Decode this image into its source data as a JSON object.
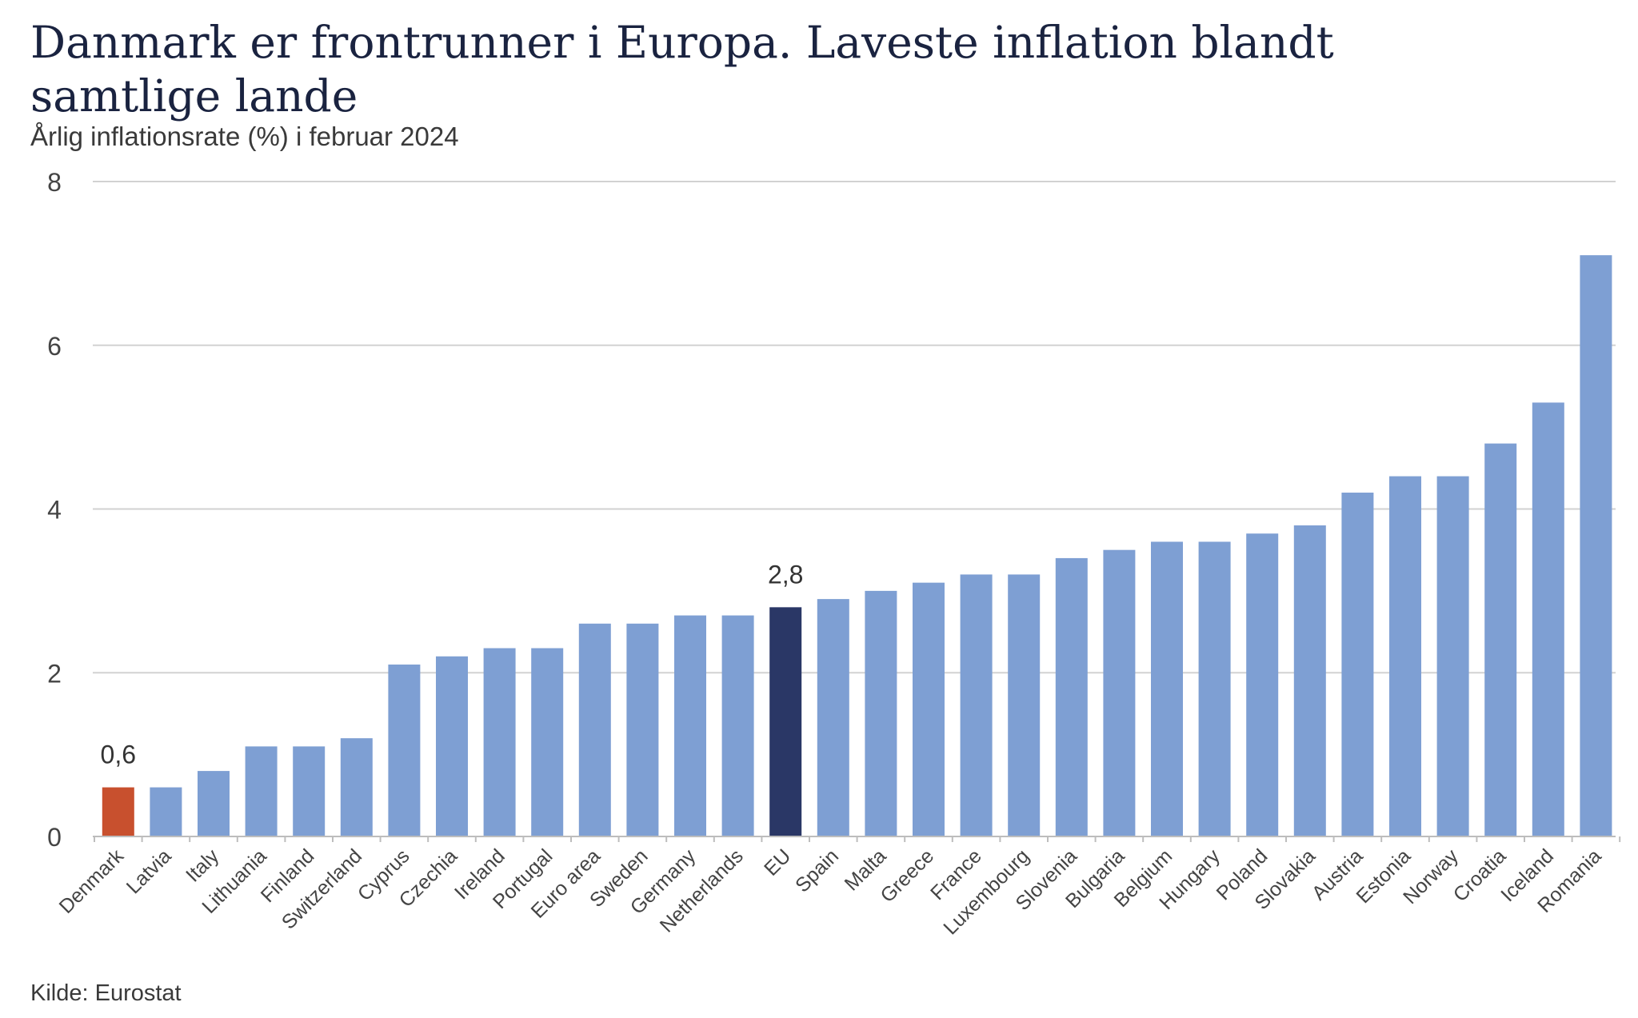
{
  "title": "Danmark er frontrunner i Europa. Laveste inflation blandt samtlige lande",
  "subtitle": "Årlig inflationsrate (%) i februar 2024",
  "source": "Kilde: Eurostat",
  "colors": {
    "default_bar": "#7e9fd3",
    "highlight_denmark": "#c8502e",
    "highlight_eu": "#2a3766",
    "grid": "#d2d2d2",
    "axis_text": "#444444",
    "title": "#1a2340"
  },
  "chart_data": {
    "type": "bar",
    "title": "Danmark er frontrunner i Europa. Laveste inflation blandt samtlige lande",
    "subtitle": "Årlig inflationsrate (%) i februar 2024",
    "xlabel": "",
    "ylabel": "",
    "ylim": [
      0,
      8
    ],
    "yticks": [
      "0",
      "2",
      "4",
      "6",
      "8"
    ],
    "grid": true,
    "categories": [
      "Denmark",
      "Latvia",
      "Italy",
      "Lithuania",
      "Finland",
      "Switzerland",
      "Cyprus",
      "Czechia",
      "Ireland",
      "Portugal",
      "Euro area",
      "Sweden",
      "Germany",
      "Netherlands",
      "EU",
      "Spain",
      "Malta",
      "Greece",
      "France",
      "Luxembourg",
      "Slovenia",
      "Bulgaria",
      "Belgium",
      "Hungary",
      "Poland",
      "Slovakia",
      "Austria",
      "Estonia",
      "Norway",
      "Croatia",
      "Iceland",
      "Romania"
    ],
    "values": [
      0.6,
      0.6,
      0.8,
      1.1,
      1.1,
      1.2,
      2.1,
      2.2,
      2.3,
      2.3,
      2.6,
      2.6,
      2.7,
      2.7,
      2.8,
      2.9,
      3.0,
      3.1,
      3.2,
      3.2,
      3.4,
      3.5,
      3.6,
      3.6,
      3.7,
      3.8,
      4.2,
      4.4,
      4.4,
      4.8,
      5.3,
      7.1
    ],
    "highlights": [
      {
        "category": "Denmark",
        "color": "#c8502e",
        "label": "0,6"
      },
      {
        "category": "EU",
        "color": "#2a3766",
        "label": "2,8"
      }
    ]
  }
}
